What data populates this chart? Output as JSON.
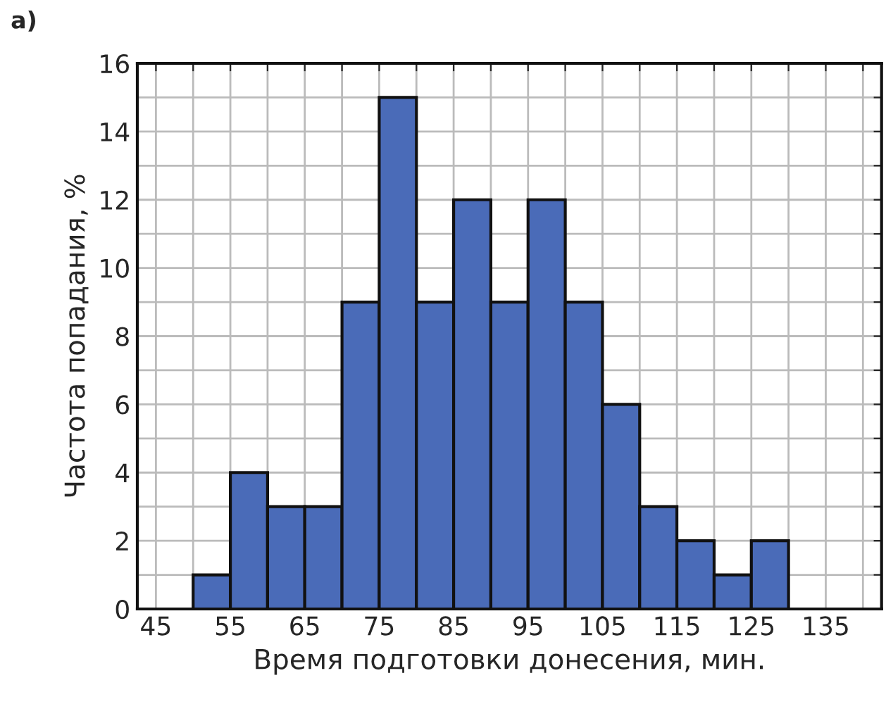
{
  "chart_data": {
    "type": "histogram",
    "xlabel": "Время подготовки донесения, мин.",
    "ylabel": "Частота попадания, %",
    "annotations": [
      "а)"
    ],
    "bins": [
      50,
      55,
      60,
      65,
      70,
      75,
      80,
      85,
      90,
      95,
      100,
      105,
      110,
      115,
      120,
      125,
      130
    ],
    "values": [
      1,
      4,
      3,
      3,
      9,
      15,
      9,
      12,
      9,
      12,
      9,
      6,
      3,
      2,
      1,
      2
    ],
    "color": "#4a6bb8",
    "xlim": [
      42.5,
      142.5
    ],
    "xticks": [
      45,
      {
        "value": 50,
        "label": null
      },
      55,
      {
        "value": 60,
        "label": null
      },
      65,
      {
        "value": 70,
        "label": null
      },
      75,
      {
        "value": 80,
        "label": null
      },
      85,
      {
        "value": 90,
        "label": null
      },
      95,
      {
        "value": 100,
        "label": null
      },
      105,
      {
        "value": 110,
        "label": null
      },
      115,
      {
        "value": 120,
        "label": null
      },
      125,
      {
        "value": 130,
        "label": null
      },
      135,
      {
        "value": 140,
        "label": null
      }
    ],
    "ylim": [
      0,
      16
    ],
    "yticks": [
      0,
      {
        "value": 1,
        "label": null
      },
      2,
      {
        "value": 3,
        "label": null
      },
      4,
      {
        "value": 5,
        "label": null
      },
      6,
      {
        "value": 7,
        "label": null
      },
      8,
      {
        "value": 9,
        "label": null
      },
      10,
      {
        "value": 11,
        "label": null
      },
      12,
      {
        "value": 13,
        "label": null
      },
      14,
      {
        "value": 15,
        "label": null
      },
      16
    ],
    "grid": true
  }
}
